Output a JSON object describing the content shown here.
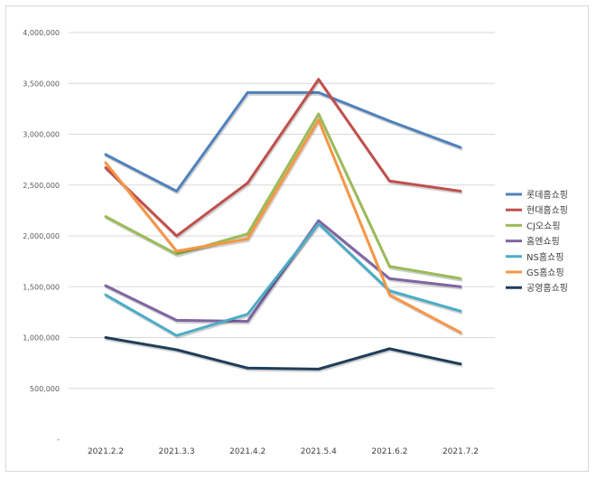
{
  "chart_data": {
    "type": "line",
    "title": "",
    "xlabel": "",
    "ylabel": "",
    "categories": [
      "2021.2.2",
      "2021.3.3",
      "2021.4.2",
      "2021.5.4",
      "2021.6.2",
      "2021.7.2"
    ],
    "ylim": [
      0,
      4000000
    ],
    "y_ticks": [
      0,
      500000,
      1000000,
      1500000,
      2000000,
      2500000,
      3000000,
      3500000,
      4000000
    ],
    "y_tick_labels": [
      "-",
      "500,000",
      "1,000,000",
      "1,500,000",
      "2,000,000",
      "2,500,000",
      "3,000,000",
      "3,500,000",
      "4,000,000"
    ],
    "grid": true,
    "legend_position": "right",
    "series": [
      {
        "name": "롯데홈쇼핑",
        "color": "#4f81bd",
        "values": [
          2800000,
          2440000,
          3410000,
          3410000,
          3130000,
          2870000
        ]
      },
      {
        "name": "현대홈쇼핑",
        "color": "#c0504d",
        "values": [
          2670000,
          2000000,
          2520000,
          3540000,
          2540000,
          2440000
        ]
      },
      {
        "name": "CJ오쇼핑",
        "color": "#9bbb59",
        "values": [
          2190000,
          1820000,
          2020000,
          3200000,
          1700000,
          1580000
        ]
      },
      {
        "name": "홈엔쇼핑",
        "color": "#8064a2",
        "values": [
          1510000,
          1170000,
          1160000,
          2150000,
          1580000,
          1500000
        ]
      },
      {
        "name": "NS홈쇼핑",
        "color": "#4bacc6",
        "values": [
          1420000,
          1020000,
          1230000,
          2120000,
          1460000,
          1260000
        ]
      },
      {
        "name": "GS홈쇼핑",
        "color": "#f79646",
        "values": [
          2720000,
          1850000,
          1970000,
          3140000,
          1420000,
          1050000
        ]
      },
      {
        "name": "공영홈쇼핑",
        "color": "#1f3d5a",
        "values": [
          1000000,
          880000,
          700000,
          690000,
          890000,
          740000
        ]
      }
    ]
  }
}
